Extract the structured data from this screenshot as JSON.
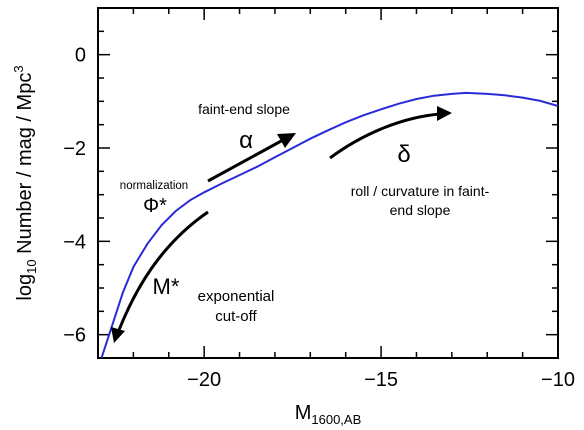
{
  "chart_data": {
    "type": "line",
    "xlabel": {
      "main": "M",
      "sub": "1600,AB"
    },
    "ylabel": {
      "pre": "log",
      "sub": "10",
      "post": " Number  /  mag  /  Mpc",
      "sup": "3"
    },
    "xlim": [
      -23,
      -10
    ],
    "ylim": [
      -6.5,
      1.0
    ],
    "xticks": [
      -20,
      -15,
      -10
    ],
    "yticks": [
      0,
      -2,
      -4,
      -6
    ],
    "grid": false,
    "legend": "none",
    "series": [
      {
        "color": "#2b2bd6",
        "x": [
          -22.9,
          -22.6,
          -22.3,
          -22.0,
          -21.6,
          -21.2,
          -20.8,
          -20.4,
          -20.0,
          -19.5,
          -19.0,
          -18.5,
          -18.0,
          -17.5,
          -17.0,
          -16.5,
          -16.0,
          -15.5,
          -15.0,
          -14.5,
          -14.0,
          -13.5,
          -13.0,
          -12.6,
          -12.0,
          -11.5,
          -11.0,
          -10.5,
          -10.0
        ],
        "values": [
          -6.5,
          -5.8,
          -5.1,
          -4.55,
          -4.05,
          -3.65,
          -3.35,
          -3.12,
          -2.95,
          -2.76,
          -2.58,
          -2.4,
          -2.2,
          -2.0,
          -1.8,
          -1.62,
          -1.45,
          -1.3,
          -1.17,
          -1.05,
          -0.95,
          -0.88,
          -0.84,
          -0.82,
          -0.84,
          -0.87,
          -0.92,
          -0.99,
          -1.1
        ]
      }
    ],
    "annotations": [
      {
        "id": "faint",
        "text": "faint-end slope"
      },
      {
        "id": "alpha",
        "text": "α"
      },
      {
        "id": "delta",
        "text": "δ"
      },
      {
        "id": "normalization",
        "text": "normalization"
      },
      {
        "id": "phi",
        "text": "Φ*"
      },
      {
        "id": "roll1",
        "text": "roll / curvature in faint-"
      },
      {
        "id": "roll2",
        "text": "end slope"
      },
      {
        "id": "mstar",
        "text": "M*"
      },
      {
        "id": "expo1",
        "text": "exponential"
      },
      {
        "id": "expo2",
        "text": "cut-off"
      }
    ]
  }
}
